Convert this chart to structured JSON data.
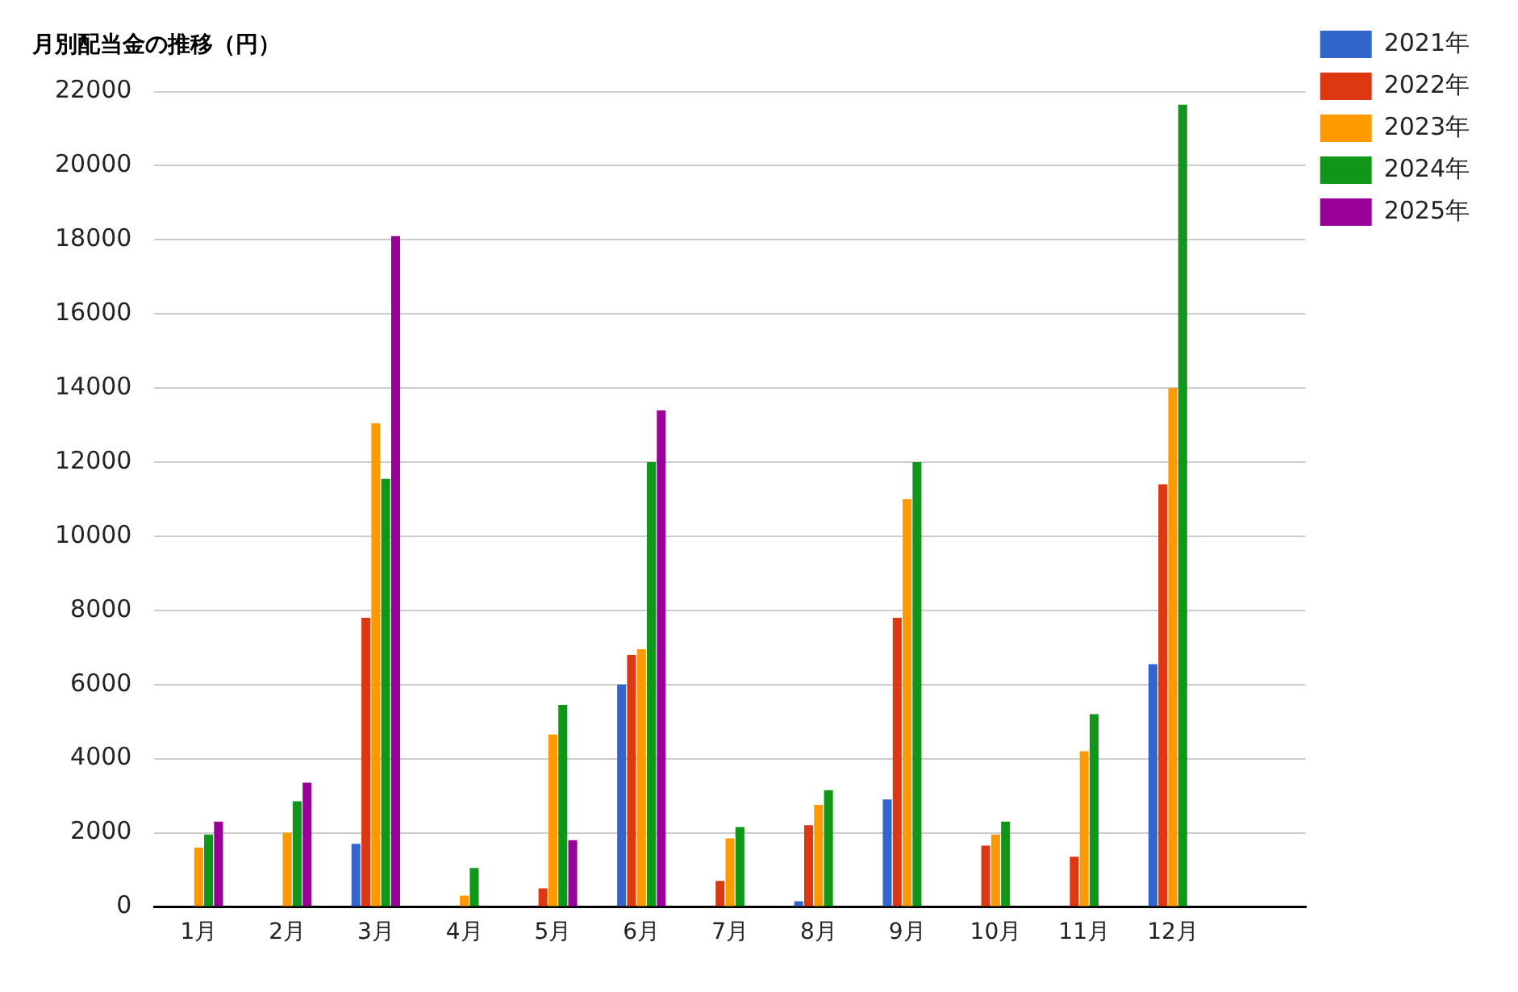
{
  "chart_data": {
    "type": "bar",
    "title": "月別配当金の推移（円）",
    "categories": [
      "1月",
      "2月",
      "3月",
      "4月",
      "5月",
      "6月",
      "7月",
      "8月",
      "9月",
      "10月",
      "11月",
      "12月",
      null
    ],
    "series": [
      {
        "name": "2021年",
        "color": "#3366cc",
        "values": [
          null,
          null,
          1700,
          null,
          null,
          6000,
          null,
          150,
          2900,
          null,
          null,
          6550,
          null
        ]
      },
      {
        "name": "2022年",
        "color": "#dc3912",
        "values": [
          null,
          null,
          7800,
          null,
          500,
          6800,
          700,
          2200,
          7800,
          1650,
          1350,
          11400,
          null
        ]
      },
      {
        "name": "2023年",
        "color": "#ff9900",
        "values": [
          1600,
          2000,
          13050,
          300,
          4650,
          6950,
          1850,
          2750,
          11000,
          1950,
          4200,
          14000,
          null
        ]
      },
      {
        "name": "2024年",
        "color": "#109618",
        "values": [
          1950,
          2850,
          11550,
          1050,
          5450,
          12000,
          2150,
          3150,
          12000,
          2300,
          5200,
          21650,
          null
        ]
      },
      {
        "name": "2025年",
        "color": "#990099",
        "values": [
          2300,
          3350,
          18100,
          null,
          1800,
          13400,
          null,
          null,
          null,
          null,
          null,
          null,
          null
        ]
      }
    ],
    "ylim": [
      0,
      22000
    ],
    "yticks": [
      0,
      2000,
      4000,
      6000,
      8000,
      10000,
      12000,
      14000,
      16000,
      18000,
      20000,
      22000
    ],
    "grid": "y",
    "legend": "top right"
  }
}
